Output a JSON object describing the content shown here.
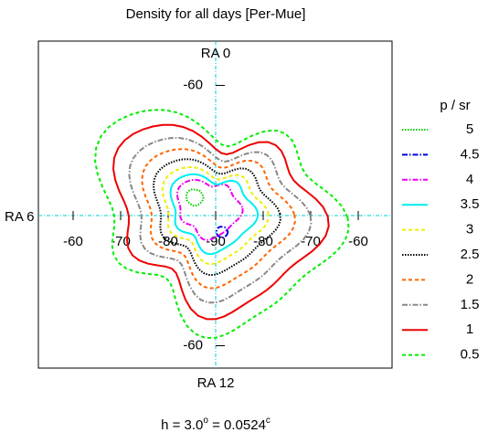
{
  "chart_data": {
    "type": "contour",
    "title": "Density for all days [Per-Mue]",
    "top_label": "RA 0",
    "left_label": "RA 6",
    "bottom_label": "RA 12",
    "xticks": [
      -60,
      -70,
      -80,
      -90,
      -80,
      -70,
      -60
    ],
    "yticks": [
      -60,
      -60
    ],
    "legend_title": "p / sr",
    "series": [
      {
        "level": 5,
        "color": "#00cc00",
        "line_style": "dotted"
      },
      {
        "level": 4.5,
        "color": "#0000dd",
        "line_style": "dashdot"
      },
      {
        "level": 4,
        "color": "#ee00ee",
        "line_style": "dashdot"
      },
      {
        "level": 3.5,
        "color": "#00eeee",
        "line_style": "solid"
      },
      {
        "level": 3,
        "color": "#eeee00",
        "line_style": "dashed"
      },
      {
        "level": 2.5,
        "color": "#000000",
        "line_style": "dotted"
      },
      {
        "level": 2,
        "color": "#ff6600",
        "line_style": "dashed"
      },
      {
        "level": 1.5,
        "color": "#888888",
        "line_style": "dashdot"
      },
      {
        "level": 1,
        "color": "#ee0000",
        "line_style": "solid"
      },
      {
        "level": 0.5,
        "color": "#00ee00",
        "line_style": "dashed"
      }
    ],
    "footer": {
      "prefix": "h = 3.0",
      "degree": "o",
      "middle": " = 0.0524",
      "radian": "c"
    }
  }
}
